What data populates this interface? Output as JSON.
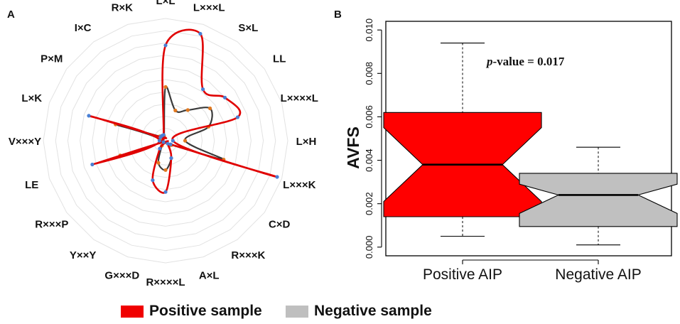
{
  "panels": {
    "a_label": "A",
    "b_label": "B"
  },
  "legend": {
    "items": [
      {
        "label": "Positive sample",
        "color": "#f00000"
      },
      {
        "label": "Negative sample",
        "color": "#bfbfbf"
      }
    ]
  },
  "chart_data": [
    {
      "type": "radar",
      "panel": "A",
      "title": "",
      "axes": [
        "L×L",
        "L×××L",
        "S×L",
        "LL",
        "L××××L",
        "L×H",
        "L×××K",
        "C×D",
        "R×××K",
        "A×L",
        "R××××L",
        "G×××D",
        "Y××Y",
        "R×××P",
        "LE",
        "V×××Y",
        "L×K",
        "P×M",
        "I×C",
        "R×K"
      ],
      "rlim": [
        0,
        1
      ],
      "grid_rings": 10,
      "series": [
        {
          "name": "Positive sample",
          "color": "#e00000",
          "point_color": "#4a7fd4",
          "values": [
            0.78,
            0.92,
            0.52,
            0.6,
            0.62,
            0.06,
            0.96,
            0.05,
            0.03,
            0.15,
            0.42,
            0.34,
            0.08,
            0.02,
            0.63,
            0.05,
            0.66,
            0.05,
            0.05,
            0.05
          ]
        },
        {
          "name": "Negative sample",
          "color": "#3a3a3a",
          "point_color": "#e07820",
          "values": [
            0.44,
            0.26,
            0.31,
            0.45,
            0.37,
            0.16,
            0.5,
            0.06,
            0.05,
            0.15,
            0.24,
            0.19,
            0.05,
            0.02,
            0.39,
            0.04,
            0.43,
            0.06,
            0.04,
            0.04
          ]
        }
      ]
    },
    {
      "type": "boxplot",
      "panel": "B",
      "title": "",
      "xlabel": "",
      "ylabel": "AVFS",
      "ylim": [
        0,
        0.01
      ],
      "yticks": [
        "0.000",
        "0.002",
        "0.004",
        "0.006",
        "0.008",
        "0.010"
      ],
      "notched": true,
      "annotation": {
        "italic": "p",
        "rest": "-value = 0.017"
      },
      "categories": [
        "Positive AIP",
        "Negative AIP"
      ],
      "boxes": [
        {
          "name": "Positive AIP",
          "color": "#ff0000",
          "whisker_low": 0.0005,
          "q1": 0.0014,
          "notch_low": 0.0021,
          "median": 0.0038,
          "notch_high": 0.0055,
          "q3": 0.0062,
          "whisker_high": 0.0094
        },
        {
          "name": "Negative AIP",
          "color": "#c0c0c0",
          "whisker_low": 0.0001,
          "q1": 0.00095,
          "notch_low": 0.00155,
          "median": 0.0024,
          "notch_high": 0.0029,
          "q3": 0.0034,
          "whisker_high": 0.0046
        }
      ]
    }
  ]
}
